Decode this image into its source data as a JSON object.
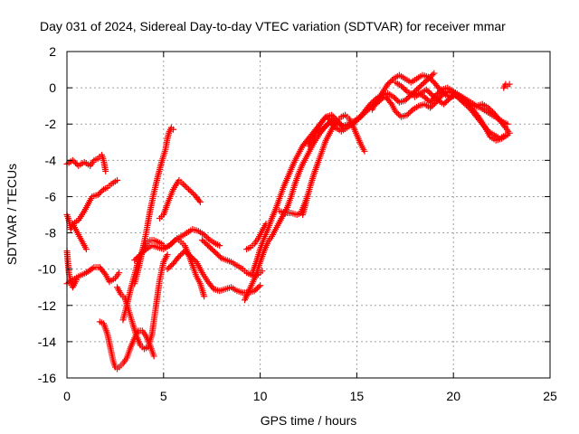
{
  "chart_data": {
    "type": "scatter",
    "title": "Day 031 of 2024, Sidereal Day-to-day VTEC variation (SDTVAR) for receiver mmar",
    "xlabel": "GPS time / hours",
    "ylabel": "SDTVAR / TECUs",
    "xlim": [
      0,
      25
    ],
    "ylim": [
      -16,
      2
    ],
    "xticks": [
      0,
      5,
      10,
      15,
      20,
      25
    ],
    "yticks": [
      -16,
      -14,
      -12,
      -10,
      -8,
      -6,
      -4,
      -2,
      0,
      2
    ],
    "grid": true,
    "marker": "+",
    "color": "#ff0000",
    "series": [
      {
        "x": [
          0.0,
          0.3,
          0.6,
          0.9,
          1.2,
          1.4,
          1.6,
          1.8,
          1.9,
          2.0
        ],
        "y": [
          -4.2,
          -4.0,
          -4.3,
          -4.1,
          -4.3,
          -4.0,
          -3.9,
          -3.7,
          -4.0,
          -4.6
        ]
      },
      {
        "x": [
          0.0,
          0.1,
          0.2,
          0.3,
          0.5,
          0.7,
          0.85,
          1.0
        ],
        "y": [
          -7.0,
          -7.3,
          -7.8,
          -7.5,
          -7.9,
          -8.3,
          -8.6,
          -8.9
        ]
      },
      {
        "x": [
          0.3,
          0.6,
          0.9,
          1.1,
          1.3,
          1.6,
          1.9,
          2.1,
          2.3,
          2.6
        ],
        "y": [
          -7.5,
          -7.3,
          -6.8,
          -6.4,
          -6.0,
          -5.9,
          -5.6,
          -5.5,
          -5.3,
          -5.1
        ]
      },
      {
        "x": [
          0.0,
          0.3,
          0.6,
          1.0,
          1.4,
          1.7,
          2.0,
          2.2,
          2.5,
          2.7
        ],
        "y": [
          -10.8,
          -10.6,
          -10.4,
          -10.2,
          -9.9,
          -9.9,
          -10.3,
          -10.7,
          -10.5,
          -10.2
        ]
      },
      {
        "x": [
          0.0,
          0.05,
          0.1,
          0.2,
          0.3,
          0.4,
          0.5
        ],
        "y": [
          -9.0,
          -9.6,
          -10.2,
          -10.7,
          -11.0,
          -10.8,
          -10.6
        ]
      },
      {
        "x": [
          1.7,
          1.9,
          2.0,
          2.1,
          2.2,
          2.3
        ],
        "y": [
          -12.9,
          -13.0,
          -13.3,
          -13.6,
          -14.1,
          -14.6
        ]
      },
      {
        "x": [
          2.3,
          2.4,
          2.5,
          2.6,
          2.7,
          2.9,
          3.1,
          3.3,
          3.5,
          3.7,
          3.9,
          4.1,
          4.3,
          4.5
        ],
        "y": [
          -14.6,
          -15.1,
          -15.4,
          -15.5,
          -15.4,
          -15.2,
          -14.9,
          -14.3,
          -13.8,
          -13.4,
          -13.4,
          -13.7,
          -14.2,
          -14.8
        ]
      },
      {
        "x": [
          2.6,
          2.8,
          3.0,
          3.2,
          3.4,
          3.6,
          3.8,
          4.0,
          4.2,
          4.4,
          4.6,
          4.8,
          5.0,
          5.2
        ],
        "y": [
          -11.0,
          -11.4,
          -11.6,
          -12.3,
          -13.0,
          -13.7,
          -14.2,
          -14.4,
          -14.3,
          -13.6,
          -12.1,
          -10.6,
          -9.6,
          -9.2
        ]
      },
      {
        "x": [
          2.9,
          3.1,
          3.3,
          3.5,
          3.7,
          3.9,
          4.1,
          4.3,
          4.5,
          4.7,
          4.9,
          5.1,
          5.3,
          5.5,
          5.7,
          5.9,
          6.1,
          6.3,
          6.5,
          6.7,
          6.9,
          7.1
        ],
        "y": [
          -12.8,
          -12.0,
          -11.1,
          -10.3,
          -9.5,
          -9.0,
          -8.6,
          -8.4,
          -8.4,
          -8.5,
          -8.6,
          -8.8,
          -8.7,
          -8.5,
          -8.3,
          -8.5,
          -8.7,
          -9.2,
          -9.8,
          -10.4,
          -10.8,
          -11.5
        ]
      },
      {
        "x": [
          3.5,
          3.8,
          4.1,
          4.4,
          4.7,
          5.0,
          5.3,
          5.6,
          5.9,
          6.2,
          6.5,
          6.8,
          7.1,
          7.4,
          7.7,
          7.9
        ],
        "y": [
          -9.5,
          -9.2,
          -8.9,
          -8.7,
          -8.8,
          -8.9,
          -8.7,
          -8.4,
          -8.2,
          -8.0,
          -7.8,
          -7.9,
          -8.1,
          -8.4,
          -8.6,
          -8.7
        ]
      },
      {
        "x": [
          3.5,
          3.7,
          3.9,
          4.1,
          4.3,
          4.5,
          4.7,
          4.9,
          5.1,
          5.2,
          5.3,
          5.4,
          5.5
        ],
        "y": [
          -10.8,
          -10.0,
          -9.0,
          -8.0,
          -6.8,
          -5.8,
          -4.9,
          -4.1,
          -3.4,
          -2.8,
          -2.4,
          -2.2,
          -2.3
        ]
      },
      {
        "x": [
          4.8,
          5.0,
          5.2,
          5.5,
          5.8,
          6.0,
          6.3,
          6.6,
          6.9
        ],
        "y": [
          -7.2,
          -7.0,
          -6.4,
          -5.6,
          -5.1,
          -5.3,
          -5.6,
          -5.9,
          -6.3
        ]
      },
      {
        "x": [
          5.2,
          5.5,
          5.8,
          6.1,
          6.4,
          6.7,
          7.0,
          7.3,
          7.6,
          7.9,
          8.2,
          8.5,
          8.8,
          9.1,
          9.4,
          9.7,
          10.0
        ],
        "y": [
          -10.0,
          -9.7,
          -9.3,
          -9.0,
          -9.3,
          -9.6,
          -10.2,
          -10.7,
          -11.1,
          -11.2,
          -11.1,
          -11.0,
          -11.2,
          -11.3,
          -11.3,
          -11.2,
          -10.9
        ]
      },
      {
        "x": [
          7.0,
          7.5,
          8.0,
          8.5,
          8.8,
          9.1,
          9.3,
          9.5,
          9.7,
          9.9,
          10.1
        ],
        "y": [
          -8.4,
          -8.9,
          -9.4,
          -9.6,
          -9.8,
          -10.0,
          -10.2,
          -10.3,
          -10.4,
          -10.3,
          -10.1
        ]
      },
      {
        "x": [
          9.2,
          9.5,
          9.8,
          10.0,
          10.2,
          10.4,
          10.6,
          10.8,
          11.0,
          11.2,
          11.4,
          11.6,
          11.8,
          12.0,
          12.2,
          12.5,
          12.8,
          13.1,
          13.4,
          13.7
        ],
        "y": [
          -11.7,
          -11.0,
          -10.3,
          -9.6,
          -9.0,
          -8.5,
          -8.2,
          -7.8,
          -7.4,
          -7.0,
          -6.6,
          -6.0,
          -5.3,
          -4.7,
          -4.2,
          -3.6,
          -3.0,
          -2.5,
          -2.1,
          -1.8
        ]
      },
      {
        "x": [
          9.3,
          9.5,
          9.7,
          9.9,
          10.1,
          10.3
        ],
        "y": [
          -8.9,
          -8.8,
          -8.6,
          -8.3,
          -7.9,
          -7.5
        ]
      },
      {
        "x": [
          9.6,
          9.8,
          10.0,
          10.2,
          10.4,
          10.6,
          10.8,
          11.0,
          11.2,
          11.4,
          11.6,
          11.8,
          12.0,
          12.2,
          12.5,
          12.8,
          13.1,
          13.4,
          13.7,
          14.0,
          14.3
        ],
        "y": [
          -10.2,
          -9.6,
          -8.9,
          -8.3,
          -7.8,
          -7.2,
          -6.7,
          -6.1,
          -5.5,
          -5.0,
          -4.5,
          -4.0,
          -3.6,
          -3.2,
          -2.8,
          -2.4,
          -2.0,
          -1.6,
          -1.5,
          -1.8,
          -2.2
        ]
      },
      {
        "x": [
          11.0,
          11.3,
          11.6,
          11.9,
          12.1,
          12.3,
          12.5
        ],
        "y": [
          -6.8,
          -6.9,
          -6.9,
          -7.0,
          -6.9,
          -6.4,
          -5.8
        ]
      },
      {
        "x": [
          12.2,
          12.4,
          12.6,
          12.8,
          13.0,
          13.2,
          13.4,
          13.6,
          13.8,
          14.0,
          14.2,
          14.4,
          14.6,
          14.8,
          15.0,
          15.2,
          15.4
        ],
        "y": [
          -7.0,
          -6.2,
          -5.4,
          -4.7,
          -4.1,
          -3.5,
          -2.9,
          -2.5,
          -2.1,
          -1.8,
          -1.6,
          -1.5,
          -1.7,
          -2.1,
          -2.6,
          -3.1,
          -3.5
        ]
      },
      {
        "x": [
          12.5,
          12.8,
          13.1,
          13.4,
          13.7,
          14.0,
          14.3,
          14.6,
          14.9,
          15.2,
          15.5,
          15.8,
          16.1,
          16.4
        ],
        "y": [
          -3.2,
          -2.6,
          -2.0,
          -1.6,
          -1.8,
          -2.0,
          -2.1,
          -2.0,
          -1.8,
          -1.6,
          -1.3,
          -1.0,
          -0.8,
          -0.5
        ]
      },
      {
        "x": [
          13.0,
          13.3,
          13.6,
          13.9,
          14.2,
          14.5,
          14.8,
          15.1,
          15.4,
          15.7,
          16.0,
          16.3,
          16.6,
          16.9,
          17.2,
          17.5,
          17.8,
          18.1,
          18.4,
          18.7,
          19.0
        ],
        "y": [
          -2.5,
          -2.2,
          -1.9,
          -2.2,
          -2.4,
          -2.2,
          -2.0,
          -1.7,
          -1.3,
          -0.9,
          -0.6,
          -0.4,
          -0.3,
          -0.5,
          -0.8,
          -0.7,
          -0.4,
          -0.1,
          0.2,
          0.5,
          0.8
        ]
      },
      {
        "x": [
          15.8,
          16.0,
          16.3,
          16.6,
          16.9,
          17.2,
          17.5,
          17.8,
          18.1,
          18.4,
          18.7,
          19.0,
          19.3,
          19.6,
          19.9,
          20.2,
          20.5,
          20.8,
          21.1,
          21.4,
          21.7,
          22.0,
          22.3,
          22.6,
          22.8
        ],
        "y": [
          -1.2,
          -0.8,
          -0.3,
          0.2,
          0.5,
          0.7,
          0.5,
          0.3,
          0.5,
          0.7,
          0.6,
          0.3,
          -0.1,
          -0.4,
          -0.5,
          -0.4,
          -0.7,
          -0.9,
          -1.0,
          -1.1,
          -1.3,
          -1.5,
          -1.7,
          -1.9,
          -2.0
        ]
      },
      {
        "x": [
          16.5,
          16.8,
          17.0,
          17.3,
          17.6,
          17.9,
          18.2,
          18.5,
          18.8,
          19.1,
          19.4,
          19.7,
          20.0,
          20.3,
          20.6,
          20.9,
          21.2,
          21.5,
          21.8,
          22.1,
          22.4,
          22.7
        ],
        "y": [
          -0.5,
          -0.9,
          -1.3,
          -1.6,
          -1.5,
          -1.2,
          -1.0,
          -0.9,
          -1.1,
          -0.8,
          -0.4,
          -0.2,
          -0.3,
          -0.6,
          -0.9,
          -1.2,
          -1.6,
          -2.0,
          -2.4,
          -2.6,
          -2.8,
          -2.6
        ]
      },
      {
        "x": [
          17.0,
          17.3,
          17.6,
          17.9,
          18.2,
          18.5,
          18.8,
          19.1,
          19.4,
          19.7,
          20.0,
          20.3,
          20.6,
          20.9,
          21.2,
          21.5,
          21.8,
          22.1,
          22.4,
          22.7,
          22.9
        ],
        "y": [
          0.3,
          0.1,
          -0.2,
          -0.4,
          -0.3,
          -0.5,
          -0.8,
          -0.4,
          -0.1,
          0.0,
          -0.2,
          -0.4,
          -0.6,
          -0.8,
          -1.0,
          -0.9,
          -1.1,
          -1.4,
          -1.8,
          -2.2,
          -2.5
        ]
      },
      {
        "x": [
          18.0,
          18.3,
          18.6,
          18.9,
          19.2,
          19.5,
          19.8,
          20.1,
          20.4,
          20.7,
          21.0,
          21.3,
          21.6,
          21.9,
          22.2,
          22.5,
          22.8
        ],
        "y": [
          -0.5,
          -0.3,
          -0.1,
          -0.4,
          -0.7,
          -0.9,
          -0.6,
          -0.3,
          -0.5,
          -0.8,
          -1.2,
          -1.6,
          -2.1,
          -2.7,
          -2.9,
          -2.8,
          -2.6
        ]
      },
      {
        "x": [
          22.6,
          22.7,
          22.8,
          22.9
        ],
        "y": [
          0.0,
          0.2,
          0.1,
          0.2
        ]
      }
    ]
  }
}
